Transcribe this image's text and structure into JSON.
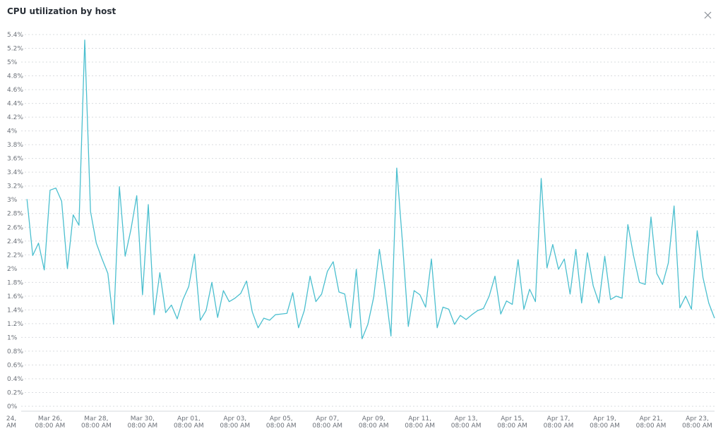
{
  "chart_data": {
    "type": "line",
    "title": "CPU utilization by host",
    "color": "#4bbfcf",
    "values": [
      3.01,
      2.19,
      2.37,
      1.98,
      3.14,
      3.17,
      2.98,
      2.0,
      2.78,
      2.63,
      5.32,
      2.83,
      2.37,
      2.14,
      1.93,
      1.19,
      3.19,
      2.18,
      2.57,
      3.06,
      1.62,
      2.93,
      1.33,
      1.94,
      1.36,
      1.47,
      1.27,
      1.55,
      1.74,
      2.21,
      1.25,
      1.39,
      1.8,
      1.29,
      1.68,
      1.52,
      1.57,
      1.64,
      1.82,
      1.37,
      1.14,
      1.28,
      1.25,
      1.33,
      1.34,
      1.35,
      1.65,
      1.14,
      1.39,
      1.89,
      1.52,
      1.63,
      1.96,
      2.1,
      1.66,
      1.63,
      1.14,
      1.99,
      0.98,
      1.19,
      1.58,
      2.28,
      1.7,
      1.02,
      3.46,
      2.37,
      1.16,
      1.68,
      1.62,
      1.44,
      2.14,
      1.14,
      1.44,
      1.41,
      1.19,
      1.32,
      1.26,
      1.33,
      1.39,
      1.42,
      1.6,
      1.89,
      1.34,
      1.53,
      1.48,
      2.13,
      1.41,
      1.7,
      1.52,
      3.31,
      2.01,
      2.35,
      1.99,
      2.14,
      1.63,
      2.28,
      1.5,
      2.23,
      1.75,
      1.5,
      2.18,
      1.55,
      1.6,
      1.57,
      2.64,
      2.18,
      1.8,
      1.77,
      2.75,
      1.93,
      1.77,
      2.08,
      2.91,
      1.43,
      1.6,
      1.41,
      2.55,
      1.87,
      1.5,
      1.28
    ],
    "xlim": [
      -1,
      119
    ],
    "xticks": [
      {
        "value": -2.7,
        "label": [
          "24,",
          "AM"
        ]
      },
      {
        "value": 4,
        "label": [
          "Mar 26,",
          "08:00 AM"
        ]
      },
      {
        "value": 12,
        "label": [
          "Mar 28,",
          "08:00 AM"
        ]
      },
      {
        "value": 20,
        "label": [
          "Mar 30,",
          "08:00 AM"
        ]
      },
      {
        "value": 28,
        "label": [
          "Apr 01,",
          "08:00 AM"
        ]
      },
      {
        "value": 36,
        "label": [
          "Apr 03,",
          "08:00 AM"
        ]
      },
      {
        "value": 44,
        "label": [
          "Apr 05,",
          "08:00 AM"
        ]
      },
      {
        "value": 52,
        "label": [
          "Apr 07,",
          "08:00 AM"
        ]
      },
      {
        "value": 60,
        "label": [
          "Apr 09,",
          "08:00 AM"
        ]
      },
      {
        "value": 68,
        "label": [
          "Apr 11,",
          "08:00 AM"
        ]
      },
      {
        "value": 76,
        "label": [
          "Apr 13,",
          "08:00 AM"
        ]
      },
      {
        "value": 84,
        "label": [
          "Apr 15,",
          "08:00 AM"
        ]
      },
      {
        "value": 92,
        "label": [
          "Apr 17,",
          "08:00 AM"
        ]
      },
      {
        "value": 100,
        "label": [
          "Apr 19,",
          "08:00 AM"
        ]
      },
      {
        "value": 108,
        "label": [
          "Apr 21,",
          "08:00 AM"
        ]
      },
      {
        "value": 116,
        "label": [
          "Apr 23,",
          "08:00 AM"
        ]
      }
    ],
    "ylim": [
      0,
      5.4
    ],
    "yticks": [
      {
        "value": 0,
        "label": "0%"
      },
      {
        "value": 0.2,
        "label": "0.2%"
      },
      {
        "value": 0.4,
        "label": "0.4%"
      },
      {
        "value": 0.6,
        "label": "0.6%"
      },
      {
        "value": 0.8,
        "label": "0.8%"
      },
      {
        "value": 1,
        "label": "1%"
      },
      {
        "value": 1.2,
        "label": "1.2%"
      },
      {
        "value": 1.4,
        "label": "1.4%"
      },
      {
        "value": 1.6,
        "label": "1.6%"
      },
      {
        "value": 1.8,
        "label": "1.8%"
      },
      {
        "value": 2,
        "label": "2%"
      },
      {
        "value": 2.2,
        "label": "2.2%"
      },
      {
        "value": 2.4,
        "label": "2.4%"
      },
      {
        "value": 2.6,
        "label": "2.6%"
      },
      {
        "value": 2.8,
        "label": "2.8%"
      },
      {
        "value": 3,
        "label": "3%"
      },
      {
        "value": 3.2,
        "label": "3.2%"
      },
      {
        "value": 3.4,
        "label": "3.4%"
      },
      {
        "value": 3.6,
        "label": "3.6%"
      },
      {
        "value": 3.8,
        "label": "3.8%"
      },
      {
        "value": 4,
        "label": "4%"
      },
      {
        "value": 4.2,
        "label": "4.2%"
      },
      {
        "value": 4.4,
        "label": "4.4%"
      },
      {
        "value": 4.6,
        "label": "4.6%"
      },
      {
        "value": 4.8,
        "label": "4.8%"
      },
      {
        "value": 5,
        "label": "5%"
      },
      {
        "value": 5.2,
        "label": "5.2%"
      },
      {
        "value": 5.4,
        "label": "5.4%"
      }
    ],
    "grid": true
  }
}
